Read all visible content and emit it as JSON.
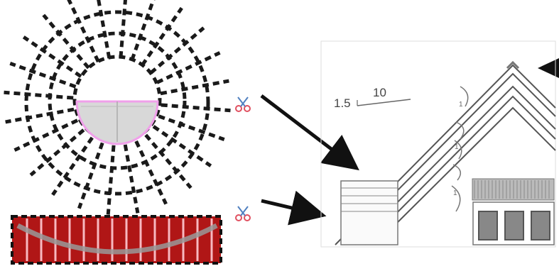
{
  "labels": {
    "slope_rise": "1.5",
    "slope_run": "10"
  },
  "icons": {
    "scissors_top": "scissors-icon",
    "scissors_bottom": "scissors-icon"
  },
  "colors": {
    "dashes": "#1a1a1a",
    "bowl_outline": "#f0a0ea",
    "bowl_fill": "#d8d8d8",
    "strip_fill": "#b01616",
    "strip_lines": "#f7b8c0",
    "arrow": "#111111"
  }
}
